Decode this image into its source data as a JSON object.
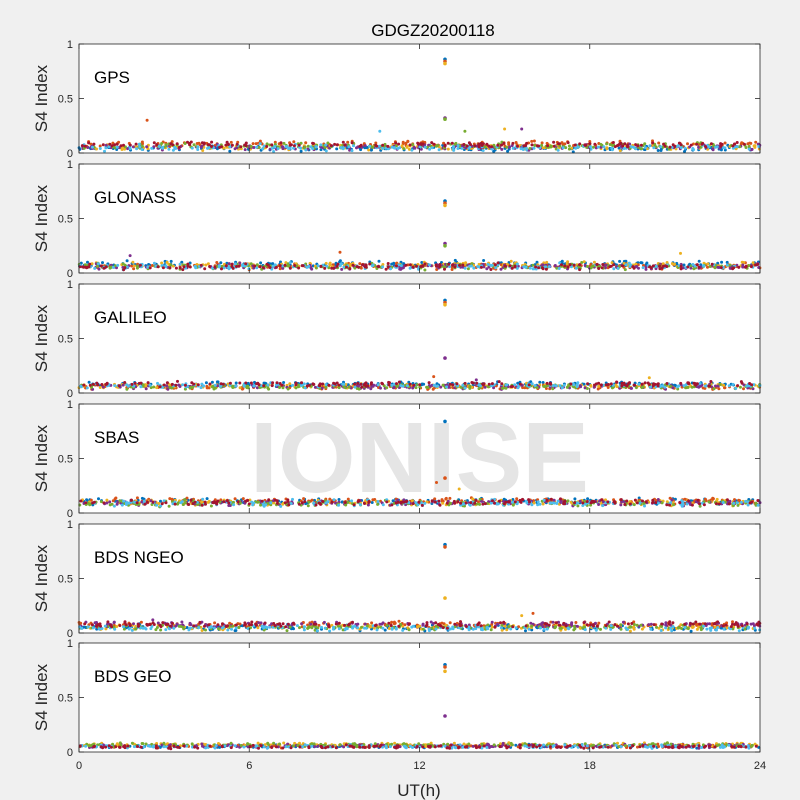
{
  "chart_data": {
    "type": "scatter",
    "title": "GDGZ20200118",
    "xlabel": "UT(h)",
    "ylabel": "S4 Index",
    "xlim": [
      0,
      24
    ],
    "ylim": [
      0,
      1
    ],
    "xticks": [
      0,
      6,
      12,
      18,
      24
    ],
    "yticks": [
      0,
      0.5,
      1
    ],
    "ytick_labels": [
      "0",
      "0.5",
      "1"
    ],
    "watermark": "IONISE",
    "colors": [
      "#0072BD",
      "#D95319",
      "#EDB120",
      "#7E2F8E",
      "#77AC30",
      "#4DBEEE",
      "#A2142F"
    ],
    "panels": [
      {
        "name": "GPS",
        "baseline": 0.06,
        "noise": 0.05,
        "spike_x": 12.9,
        "spikes": [
          0.86,
          0.84,
          0.82,
          0.32,
          0.31
        ],
        "outliers": [
          [
            2.4,
            0.3
          ],
          [
            15.0,
            0.22
          ],
          [
            15.6,
            0.22
          ],
          [
            13.6,
            0.2
          ],
          [
            10.6,
            0.2
          ]
        ]
      },
      {
        "name": "GLONASS",
        "baseline": 0.07,
        "noise": 0.05,
        "spike_x": 12.9,
        "spikes": [
          0.66,
          0.64,
          0.62,
          0.27,
          0.25
        ],
        "outliers": [
          [
            9.2,
            0.19
          ],
          [
            21.2,
            0.18
          ],
          [
            1.8,
            0.16
          ]
        ]
      },
      {
        "name": "GALILEO",
        "baseline": 0.07,
        "noise": 0.04,
        "spike_x": 12.9,
        "spikes": [
          0.85,
          0.83,
          0.81,
          0.32
        ],
        "outliers": [
          [
            12.5,
            0.15
          ],
          [
            20.1,
            0.14
          ],
          [
            14.0,
            0.12
          ]
        ]
      },
      {
        "name": "SBAS",
        "baseline": 0.1,
        "noise": 0.05,
        "spike_x": 12.9,
        "spikes": [
          0.84,
          0.32
        ],
        "outliers": [
          [
            12.6,
            0.28
          ],
          [
            13.4,
            0.22
          ]
        ]
      },
      {
        "name": "BDS NGEO",
        "baseline": 0.06,
        "noise": 0.05,
        "spike_x": 12.9,
        "spikes": [
          0.81,
          0.79,
          0.32
        ],
        "outliers": [
          [
            16.0,
            0.18
          ],
          [
            15.6,
            0.16
          ],
          [
            2.6,
            0.12
          ]
        ]
      },
      {
        "name": "BDS GEO",
        "baseline": 0.06,
        "noise": 0.03,
        "spike_x": 12.9,
        "spikes": [
          0.8,
          0.78,
          0.74,
          0.33
        ],
        "outliers": []
      }
    ]
  }
}
